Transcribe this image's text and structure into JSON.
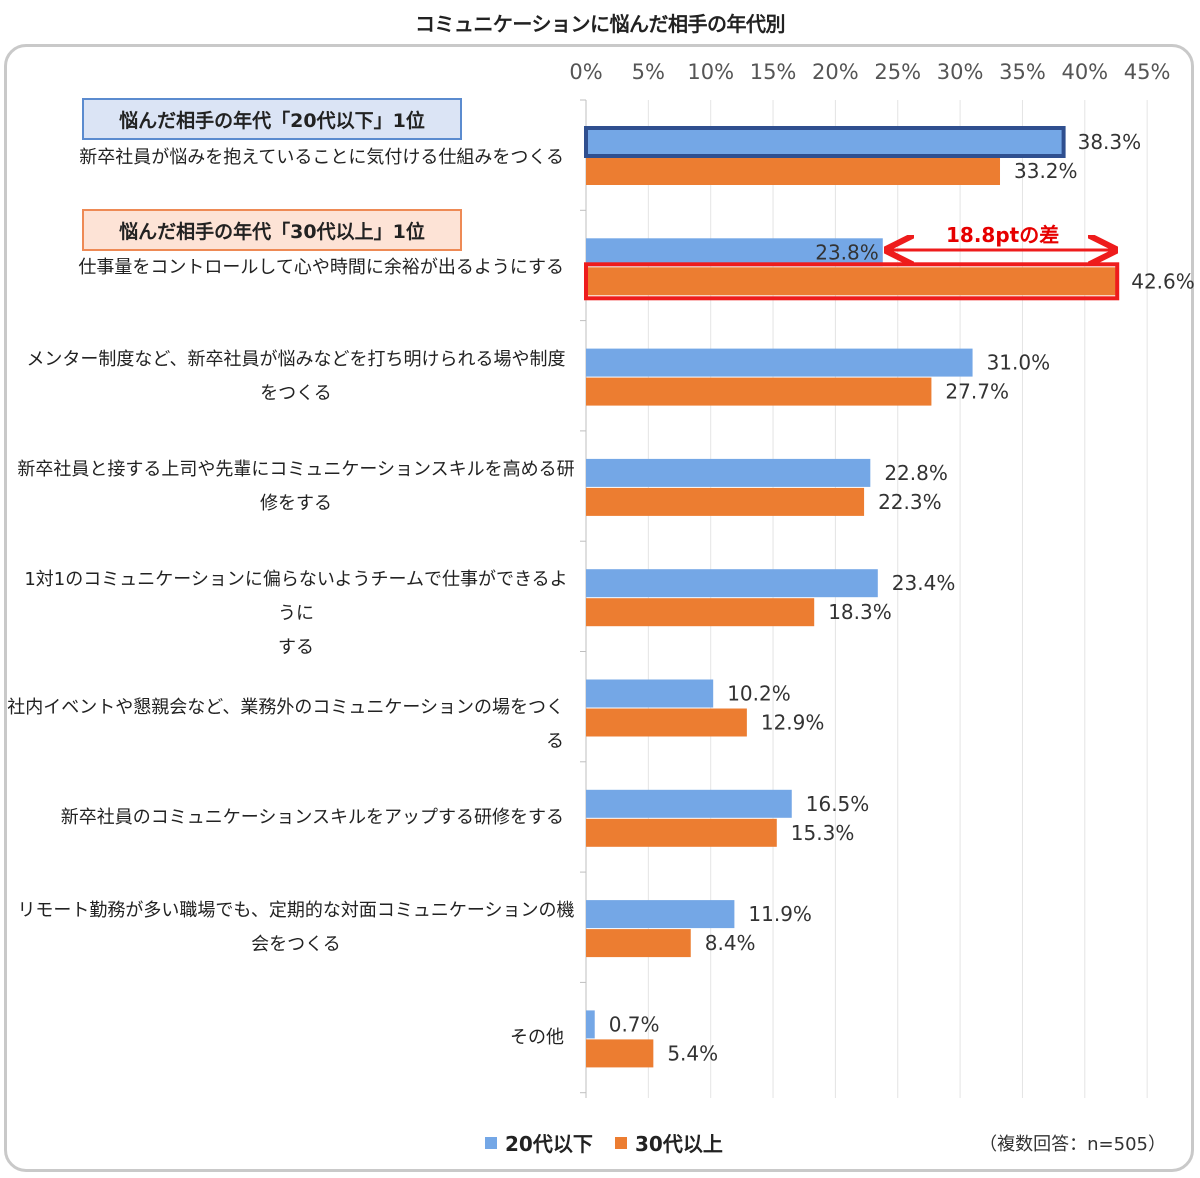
{
  "title": "コミュニケーションに悩んだ相手の年代別",
  "badges": {
    "first": "悩んだ相手の年代「20代以下」1位",
    "second": "悩んだ相手の年代「30代以上」1位"
  },
  "annotation": "18.8ptの差",
  "note": "（複数回答：n=505）",
  "colors": {
    "series1": "#74a7e6",
    "series2": "#ec7d31",
    "highlight_blue": "#2f4f8f",
    "highlight_red": "#ee1c1c"
  },
  "chart_data": {
    "type": "bar",
    "orientation": "horizontal",
    "x_ticks": [
      "0%",
      "5%",
      "10%",
      "15%",
      "20%",
      "25%",
      "30%",
      "35%",
      "40%",
      "45%"
    ],
    "xlim": [
      0,
      45
    ],
    "grid": true,
    "legend_position": "bottom",
    "categories": [
      "新卒社員が悩みを抱えていることに気付ける仕組みをつくる",
      "仕事量をコントロールして心や時間に余裕が出るようにする",
      "メンター制度など、新卒社員が悩みなどを打ち明けられる場や制度\nをつくる",
      "新卒社員と接する上司や先輩にコミュニケーションスキルを高める研\n修をする",
      "1対1のコミュニケーションに偏らないようチームで仕事ができるように\nする",
      "社内イベントや懇親会など、業務外のコミュニケーションの場をつくる",
      "新卒社員のコミュニケーションスキルをアップする研修をする",
      "リモート勤務が多い職場でも、定期的な対面コミュニケーションの機\n会をつくる",
      "その他"
    ],
    "series": [
      {
        "name": "20代以下",
        "values": [
          38.3,
          23.8,
          31.0,
          22.8,
          23.4,
          10.2,
          16.5,
          11.9,
          0.7
        ],
        "labels": [
          "38.3%",
          "23.8%",
          "31.0%",
          "22.8%",
          "23.4%",
          "10.2%",
          "16.5%",
          "11.9%",
          "0.7%"
        ]
      },
      {
        "name": "30代以上",
        "values": [
          33.2,
          42.6,
          27.7,
          22.3,
          18.3,
          12.9,
          15.3,
          8.4,
          5.4
        ],
        "labels": [
          "33.2%",
          "42.6%",
          "27.7%",
          "22.3%",
          "18.3%",
          "12.9%",
          "15.3%",
          "8.4%",
          "5.4%"
        ]
      }
    ]
  }
}
